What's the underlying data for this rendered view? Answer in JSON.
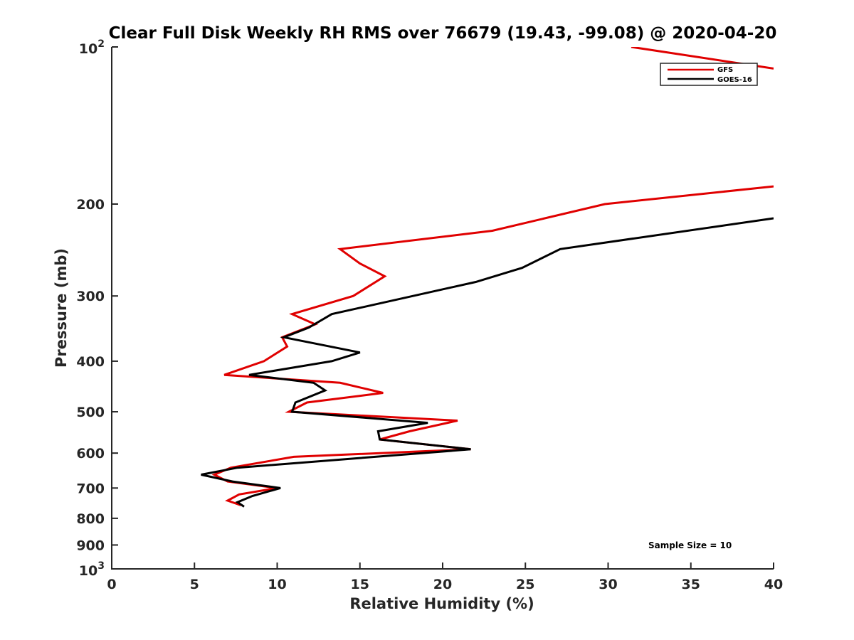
{
  "chart_data": {
    "type": "line",
    "title": "Clear Full Disk Weekly RH RMS over 76679 (19.43, -99.08) @ 2020-04-20",
    "xlabel": "Relative Humidity (%)",
    "ylabel": "Pressure (mb)",
    "xlim": [
      0,
      40
    ],
    "ylim": [
      100,
      1000
    ],
    "y_scale": "log",
    "y_reversed": true,
    "x_ticks": [
      "0",
      "5",
      "10",
      "15",
      "20",
      "25",
      "30",
      "35",
      "40"
    ],
    "y_ticks": [
      {
        "value": 100,
        "base": "10",
        "exp": "2"
      },
      {
        "value": 200,
        "label": "200"
      },
      {
        "value": 300,
        "label": "300"
      },
      {
        "value": 400,
        "label": "400"
      },
      {
        "value": 500,
        "label": "500"
      },
      {
        "value": 600,
        "label": "600"
      },
      {
        "value": 700,
        "label": "700"
      },
      {
        "value": 800,
        "label": "800"
      },
      {
        "value": 900,
        "label": "900"
      },
      {
        "value": 1000,
        "base": "10",
        "exp": "3"
      }
    ],
    "legend_position": "top-right",
    "grid": false,
    "annotation": "Sample Size = 10",
    "series": [
      {
        "name": "GFS",
        "color": "#e00000",
        "x": [
          31.4,
          40.0
        ],
        "y": [
          100,
          110
        ]
      },
      {
        "name": "GFS",
        "color": "#e00000",
        "x": [
          40.0,
          29.8,
          23.0,
          13.8,
          15.0,
          16.5,
          14.6,
          10.9,
          12.3,
          10.3,
          10.6,
          9.2,
          6.8,
          13.8,
          16.4,
          11.8,
          10.7,
          20.9,
          18.0,
          16.2,
          21.7,
          11.0,
          7.2,
          6.2,
          7.0,
          10.0,
          7.7,
          7.0,
          7.8
        ],
        "y": [
          185,
          200,
          225,
          244,
          260,
          275,
          300,
          325,
          340,
          360,
          375,
          400,
          425,
          440,
          460,
          480,
          500,
          520,
          545,
          565,
          590,
          610,
          640,
          660,
          680,
          700,
          720,
          740,
          755
        ]
      },
      {
        "name": "GOES-16",
        "color": "#000000",
        "x": [
          40.0,
          27.1,
          24.8,
          22.0,
          13.3,
          11.9,
          10.4,
          15.0,
          13.3,
          8.3,
          12.2,
          12.9,
          11.1,
          11.0,
          10.9,
          19.1,
          16.1,
          16.2,
          21.7,
          7.6,
          5.4,
          7.3,
          10.2,
          8.5,
          7.6,
          8.0
        ],
        "y": [
          213,
          244,
          265,
          282,
          325,
          345,
          360,
          385,
          400,
          425,
          440,
          455,
          480,
          490,
          500,
          525,
          545,
          565,
          590,
          640,
          660,
          680,
          700,
          725,
          745,
          760
        ]
      }
    ],
    "legend": [
      {
        "name": "GFS",
        "color": "#e00000"
      },
      {
        "name": "GOES-16",
        "color": "#000000"
      }
    ]
  }
}
